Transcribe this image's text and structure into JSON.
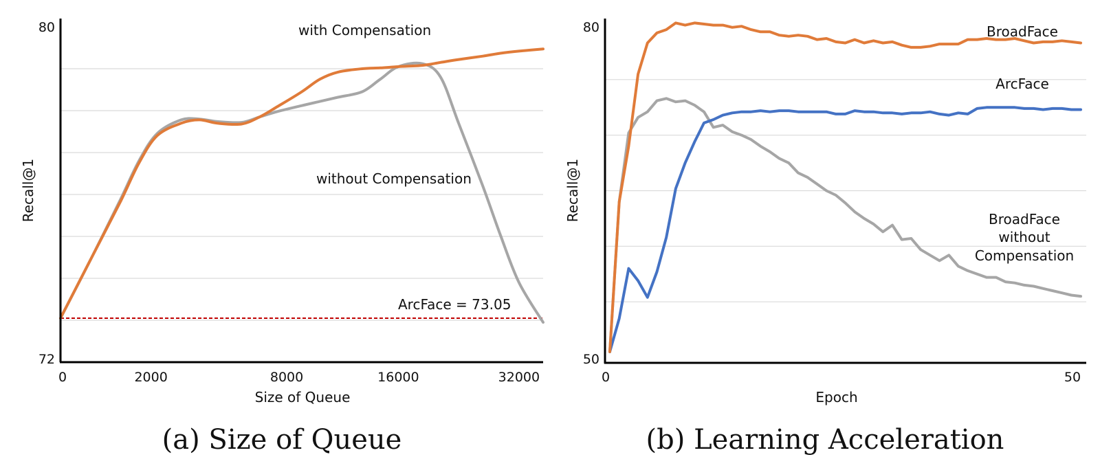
{
  "chart_data": [
    {
      "type": "line",
      "caption": "(a) Size of Queue",
      "xlabel": "Size of Queue",
      "ylabel": "Recall@1",
      "categories": [
        "0",
        "2000",
        "8000",
        "16000",
        "32000"
      ],
      "ylim": [
        72,
        80
      ],
      "yticks": [
        "72",
        "80"
      ],
      "grid": true,
      "series": [
        {
          "name": "with Compensation",
          "color": "#E07B39",
          "x": [
            0,
            0.5,
            1,
            1.3,
            1.6,
            2,
            2.3,
            2.6,
            3,
            3.3,
            3.6,
            4,
            4.3,
            4.6,
            5,
            5.3,
            5.6,
            6,
            6.3,
            6.6,
            7,
            7.3,
            7.6,
            8
          ],
          "values": [
            73.05,
            74.45,
            75.85,
            76.75,
            77.4,
            77.7,
            77.78,
            77.7,
            77.68,
            77.85,
            78.1,
            78.45,
            78.75,
            78.92,
            79.0,
            79.02,
            79.05,
            79.08,
            79.15,
            79.22,
            79.3,
            79.37,
            79.42,
            79.47
          ]
        },
        {
          "name": "without Compensation",
          "color": "#A6A6A6",
          "x": [
            0,
            0.5,
            1,
            1.3,
            1.6,
            2,
            2.3,
            2.6,
            3,
            3.3,
            3.6,
            4,
            4.3,
            4.6,
            5,
            5.3,
            5.6,
            6,
            6.3,
            6.6,
            7,
            7.3,
            7.6,
            8
          ],
          "values": [
            73.05,
            74.45,
            75.9,
            76.8,
            77.45,
            77.78,
            77.8,
            77.74,
            77.72,
            77.85,
            77.98,
            78.12,
            78.22,
            78.32,
            78.45,
            78.75,
            79.05,
            79.12,
            78.8,
            77.7,
            76.2,
            75.0,
            73.9,
            72.95
          ]
        }
      ],
      "annotations": {
        "with": "with Compensation",
        "without": "without Compensation",
        "baseline": "ArcFace = 73.05"
      },
      "baseline": {
        "value": 73.05,
        "color": "#C00000"
      }
    },
    {
      "type": "line",
      "caption": "(b) Learning Acceleration",
      "xlabel": "Epoch",
      "ylabel": "Recall@1",
      "xlim": [
        0,
        50
      ],
      "xticks": [
        "0",
        "50"
      ],
      "ylim": [
        50,
        80
      ],
      "yticks": [
        "50",
        "80"
      ],
      "grid": true,
      "series": [
        {
          "name": "BroadFace",
          "color": "#E07B39",
          "values": [
            50.5,
            64,
            69,
            75.5,
            78.3,
            79.2,
            79.5,
            80.1,
            79.9,
            80.1,
            80,
            79.9,
            79.9,
            79.7,
            79.8,
            79.5,
            79.3,
            79.3,
            79,
            78.9,
            79,
            78.9,
            78.6,
            78.7,
            78.4,
            78.3,
            78.6,
            78.3,
            78.5,
            78.3,
            78.4,
            78.1,
            77.9,
            77.9,
            78,
            78.2,
            78.2,
            78.2,
            78.6,
            78.6,
            78.7,
            78.6,
            78.6,
            78.7,
            78.5,
            78.3,
            78.4,
            78.4,
            78.5,
            78.4,
            78.3
          ]
        },
        {
          "name": "ArcFace",
          "color": "#4472C4",
          "values": [
            50.5,
            53.5,
            58,
            56.9,
            55.4,
            57.7,
            60.8,
            65.2,
            67.5,
            69.4,
            71.1,
            71.4,
            71.8,
            72,
            72.1,
            72.1,
            72.2,
            72.1,
            72.2,
            72.2,
            72.1,
            72.1,
            72.1,
            72.1,
            71.9,
            71.9,
            72.2,
            72.1,
            72.1,
            72,
            72,
            71.9,
            72,
            72,
            72.1,
            71.9,
            71.8,
            72,
            71.9,
            72.4,
            72.5,
            72.5,
            72.5,
            72.5,
            72.4,
            72.4,
            72.3,
            72.4,
            72.4,
            72.3,
            72.3
          ]
        },
        {
          "name": "BroadFace without Compensation",
          "color": "#A6A6A6",
          "values": [
            50.5,
            64,
            70.2,
            71.6,
            72.1,
            73.1,
            73.3,
            73,
            73.1,
            72.7,
            72.1,
            70.7,
            70.9,
            70.3,
            70,
            69.6,
            69,
            68.5,
            67.9,
            67.5,
            66.6,
            66.2,
            65.6,
            65,
            64.6,
            63.9,
            63.1,
            62.5,
            62,
            61.3,
            61.9,
            60.6,
            60.7,
            59.7,
            59.2,
            58.7,
            59.2,
            58.2,
            57.8,
            57.5,
            57.2,
            57.2,
            56.8,
            56.7,
            56.5,
            56.4,
            56.2,
            56,
            55.8,
            55.6,
            55.5
          ]
        }
      ],
      "annotations": {
        "broadface": "BroadFace",
        "arcface": "ArcFace",
        "nocomp_lines": [
          "BroadFace",
          "without",
          "Compensation"
        ]
      }
    }
  ]
}
